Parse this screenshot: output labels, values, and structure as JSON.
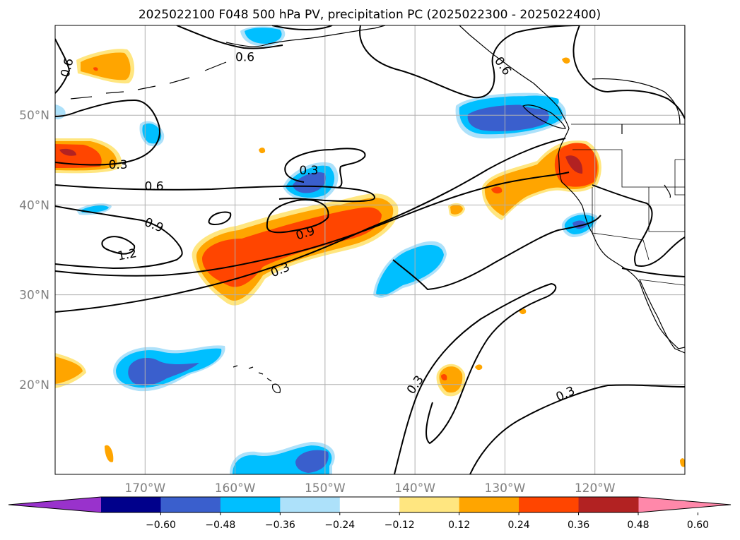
{
  "chart_data": {
    "type": "map",
    "title": "2025022100 F048 500 hPa PV, precipitation PC (2025022300 - 2025022400)",
    "lon_range": [
      -180,
      -110
    ],
    "lat_range": [
      10,
      60
    ],
    "lon_ticks": [
      {
        "value": -170,
        "label": "170°W"
      },
      {
        "value": -160,
        "label": "160°W"
      },
      {
        "value": -150,
        "label": "150°W"
      },
      {
        "value": -140,
        "label": "140°W"
      },
      {
        "value": -130,
        "label": "130°W"
      },
      {
        "value": -120,
        "label": "120°W"
      }
    ],
    "lat_ticks": [
      {
        "value": 50,
        "label": "50°N"
      },
      {
        "value": 40,
        "label": "40°N"
      },
      {
        "value": 30,
        "label": "30°N"
      },
      {
        "value": 20,
        "label": "20°N"
      }
    ],
    "grid": true,
    "colorbar": {
      "levels": [
        "−0.60",
        "−0.48",
        "−0.36",
        "−0.24",
        "−0.12",
        "0.12",
        "0.24",
        "0.36",
        "0.48",
        "0.60"
      ],
      "colors": [
        "#9932CC",
        "#00008B",
        "#3A5FCD",
        "#00BFFF",
        "#ADE1FA",
        "#FFFFFF",
        "#FFE680",
        "#FFA500",
        "#FF4500",
        "#B22222",
        "#FF88AA"
      ],
      "extend": "both"
    },
    "pv_contour_labels": [
      {
        "text": "0.6",
        "lon": -178.7,
        "lat": 55.3,
        "rot": -75
      },
      {
        "text": "0.6",
        "lon": -158.9,
        "lat": 56.5,
        "rot": 0
      },
      {
        "text": "0.3",
        "lon": -173.0,
        "lat": 44.5,
        "rot": 0
      },
      {
        "text": "0.6",
        "lon": -169.0,
        "lat": 42.1,
        "rot": 0
      },
      {
        "text": "0.9",
        "lon": -169.0,
        "lat": 37.8,
        "rot": 22
      },
      {
        "text": "1.2",
        "lon": -172.0,
        "lat": 34.5,
        "rot": -10
      },
      {
        "text": "0.3",
        "lon": -151.8,
        "lat": 43.9,
        "rot": 0
      },
      {
        "text": "0.9",
        "lon": -152.2,
        "lat": 36.9,
        "rot": -18
      },
      {
        "text": "0.3",
        "lon": -155.0,
        "lat": 32.8,
        "rot": -22
      },
      {
        "text": "0.6",
        "lon": -130.2,
        "lat": 55.5,
        "rot": 55
      },
      {
        "text": "0.3",
        "lon": -140.0,
        "lat": 20.0,
        "rot": -55
      },
      {
        "text": "0.3",
        "lon": -123.3,
        "lat": 19.0,
        "rot": -25
      }
    ],
    "precip_regions": [
      {
        "name": "Subtropical jet band",
        "lon": -153,
        "lat": 35,
        "value": 0.45
      },
      {
        "name": "Pacific Northwest coast",
        "lon": -122,
        "lat": 45,
        "value": 0.5
      },
      {
        "name": "Off-coast warm sector",
        "lon": -129,
        "lat": 41,
        "value": 0.3
      },
      {
        "name": "West edge 46N",
        "lon": -178,
        "lat": 45.5,
        "value": 0.4
      },
      {
        "name": "Aleutian south",
        "lon": -175,
        "lat": 55.8,
        "value": 0.35
      },
      {
        "name": "Gulf of Alaska",
        "lon": -132,
        "lat": 50,
        "value": -0.45
      },
      {
        "name": "Mid-Pacific 42N",
        "lon": -152,
        "lat": 42,
        "value": -0.4
      },
      {
        "name": "Subtropical 32N",
        "lon": -139,
        "lat": 32,
        "value": -0.3
      },
      {
        "name": "Hawaii north 22N",
        "lon": -168,
        "lat": 21.5,
        "value": -0.42
      },
      {
        "name": "Southern edge 11N",
        "lon": -151,
        "lat": 11.5,
        "value": -0.38
      }
    ]
  }
}
